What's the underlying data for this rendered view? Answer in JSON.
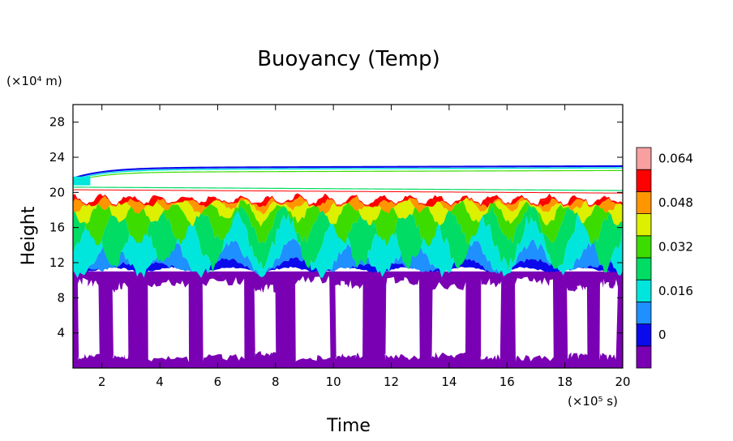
{
  "chart_data": {
    "type": "heatmap",
    "title": "Buoyancy (Temp)",
    "xlabel": "Time",
    "ylabel": "Height",
    "x_unit_label": "(×10⁵ s)",
    "y_unit_label": "(×10⁴ m)",
    "xlim": [
      1,
      20
    ],
    "ylim": [
      0,
      30
    ],
    "x_ticks": [
      "2",
      "4",
      "6",
      "8",
      "10",
      "12",
      "14",
      "16",
      "18",
      "20"
    ],
    "y_ticks": [
      "4",
      "8",
      "12",
      "16",
      "20",
      "24",
      "28"
    ],
    "grid": false,
    "colorbar": {
      "levels": [
        {
          "lo": -0.008,
          "hi": 0.0,
          "color": "#7a00b4"
        },
        {
          "lo": 0.0,
          "hi": 0.008,
          "color": "#0a0aec"
        },
        {
          "lo": 0.008,
          "hi": 0.016,
          "color": "#1e90ff"
        },
        {
          "lo": 0.016,
          "hi": 0.024,
          "color": "#00e6dc"
        },
        {
          "lo": 0.024,
          "hi": 0.032,
          "color": "#00dc64"
        },
        {
          "lo": 0.032,
          "hi": 0.04,
          "color": "#3cdc00"
        },
        {
          "lo": 0.04,
          "hi": 0.048,
          "color": "#dcf000"
        },
        {
          "lo": 0.048,
          "hi": 0.056,
          "color": "#ff9600"
        },
        {
          "lo": 0.056,
          "hi": 0.064,
          "color": "#ff0000"
        },
        {
          "lo": 0.064,
          "hi": 0.072,
          "color": "#f8a0a0"
        }
      ],
      "tick_labels": [
        "0",
        "0.016",
        "0.032",
        "0.048",
        "0.064"
      ]
    },
    "layers": [
      {
        "name": "lower",
        "y_range": [
          0,
          11
        ],
        "value_range": [
          -0.008,
          0.0
        ],
        "note": "negative values with patchy gaps"
      },
      {
        "name": "core",
        "y_range": [
          11,
          19.5
        ],
        "value_range": [
          0.0,
          0.04
        ]
      },
      {
        "name": "top",
        "y_range": [
          19.5,
          20
        ],
        "value_range": [
          0.04,
          0.064
        ]
      },
      {
        "name": "upper_streaks",
        "y_range": [
          20,
          23
        ],
        "value_range": [
          0.0,
          0.064
        ]
      }
    ]
  }
}
